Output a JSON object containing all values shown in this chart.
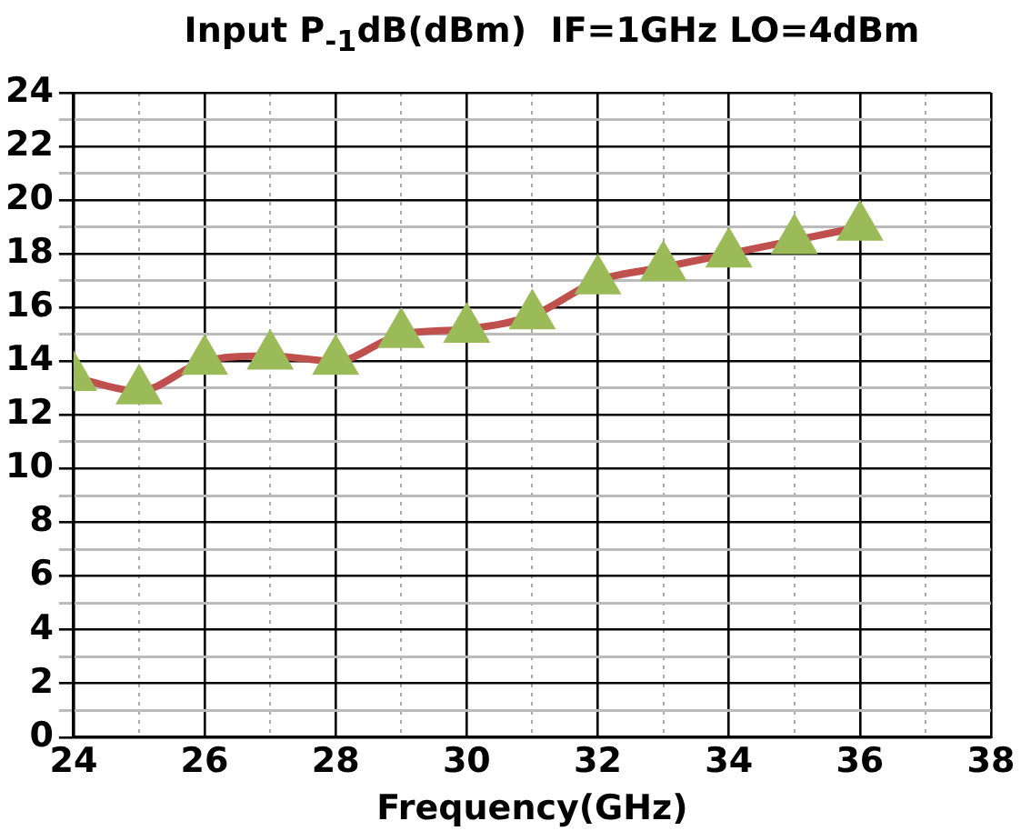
{
  "chart_data": {
    "type": "line",
    "title": "Input P$_{-1}$dB(dBm)  IF=1GHz LO=4dBm",
    "xlabel": "Frequency(GHz)",
    "x": [
      24,
      25,
      26,
      27,
      28,
      29,
      30,
      31,
      32,
      33,
      34,
      35,
      36
    ],
    "series": [
      {
        "color": "#c0504d",
        "colors": [
          "#9bbb59",
          "#9bbb59",
          "#9bbb59",
          "#9bbb59",
          "#9bbb59",
          "#9bbb59",
          "#9bbb59",
          "#9bbb59",
          "#9bbb59",
          "#9bbb59",
          "#9bbb59",
          "#9bbb59",
          "#9bbb59"
        ],
        "values": [
          13.4,
          12.9,
          14.0,
          14.2,
          14.0,
          15.0,
          15.2,
          15.7,
          17.0,
          17.5,
          18.0,
          18.5,
          19.0
        ]
      }
    ],
    "marker": "triangle",
    "grid": true,
    "legend": false,
    "xlim": [
      24,
      38
    ],
    "xticks": [
      24,
      {
        "value": 25,
        "label": null
      },
      26,
      {
        "value": 27,
        "label": null
      },
      28,
      {
        "value": 29,
        "label": null
      },
      30,
      {
        "value": 31,
        "label": null
      },
      32,
      {
        "value": 33,
        "label": null
      },
      34,
      {
        "value": 35,
        "label": null
      },
      36,
      {
        "value": 37,
        "label": null
      },
      38
    ],
    "ylim": [
      0,
      24
    ],
    "yticks": [
      0,
      {
        "value": 1,
        "label": null
      },
      2,
      {
        "value": 3,
        "label": null
      },
      4,
      {
        "value": 5,
        "label": null
      },
      6,
      {
        "value": 7,
        "label": null
      },
      8,
      {
        "value": 9,
        "label": null
      },
      10,
      {
        "value": 11,
        "label": null
      },
      12,
      {
        "value": 13,
        "label": null
      },
      14,
      {
        "value": 15,
        "label": null
      },
      16,
      {
        "value": 17,
        "label": null
      },
      18,
      {
        "value": 19,
        "label": null
      },
      20,
      {
        "value": 21,
        "label": null
      },
      22,
      {
        "value": 23,
        "label": null
      },
      24
    ]
  }
}
